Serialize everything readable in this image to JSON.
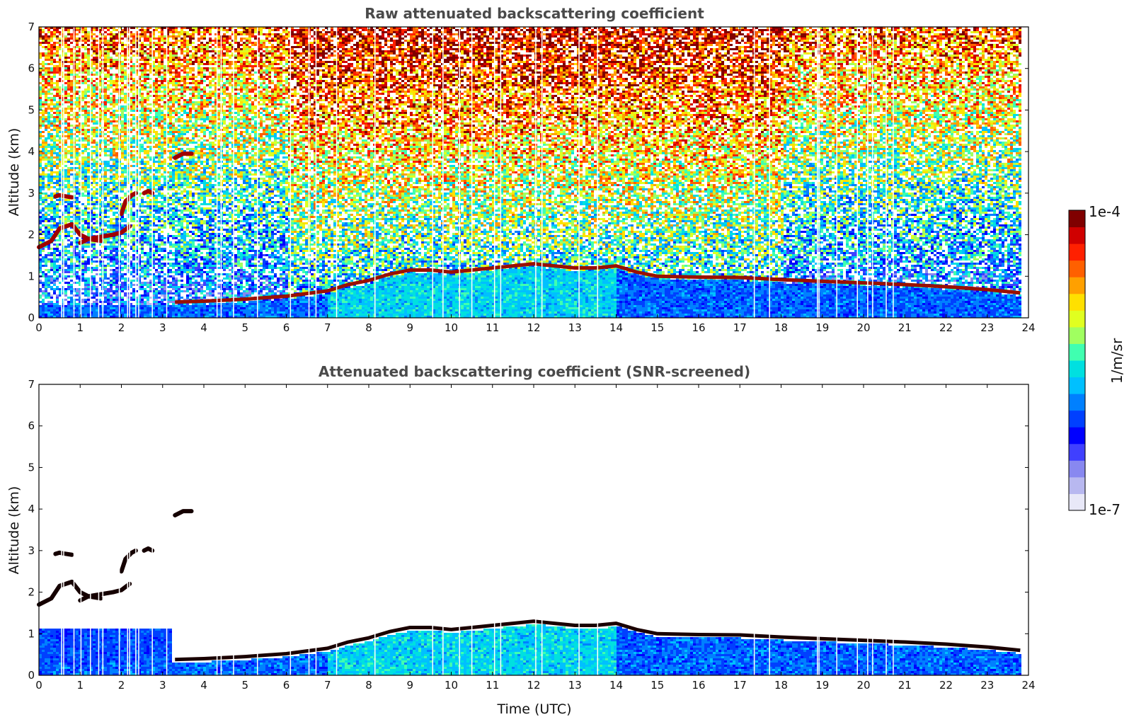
{
  "chart_data": [
    {
      "type": "heatmap",
      "title": "Raw attenuated backscattering coefficient",
      "xlabel": "",
      "ylabel": "Altitude (km)",
      "xlim": [
        0,
        24
      ],
      "ylim": [
        0,
        7
      ],
      "x_ticks": [
        "0",
        "1",
        "2",
        "3",
        "4",
        "5",
        "6",
        "7",
        "8",
        "9",
        "10",
        "11",
        "12",
        "13",
        "14",
        "15",
        "16",
        "17",
        "18",
        "19",
        "20",
        "21",
        "22",
        "23",
        "24"
      ],
      "y_ticks": [
        "0",
        "1",
        "2",
        "3",
        "4",
        "5",
        "6",
        "7"
      ],
      "data_end_hour": 23.8,
      "noise_floor": "full column",
      "boundary_layer_top_km": {
        "x": [
          3.3,
          4,
          5,
          6,
          7,
          7.5,
          8,
          8.5,
          9,
          9.5,
          10,
          10.5,
          11,
          11.5,
          12,
          12.5,
          13,
          13.5,
          14,
          14.5,
          15,
          16,
          17,
          18,
          19,
          20,
          21,
          22,
          23,
          23.8
        ],
        "y": [
          0.38,
          0.4,
          0.45,
          0.52,
          0.65,
          0.8,
          0.9,
          1.05,
          1.15,
          1.15,
          1.1,
          1.15,
          1.2,
          1.25,
          1.3,
          1.25,
          1.2,
          1.2,
          1.25,
          1.1,
          1.0,
          0.98,
          0.97,
          0.92,
          0.88,
          0.84,
          0.8,
          0.75,
          0.68,
          0.6
        ]
      },
      "cloud_layers": [
        {
          "name": "",
          "x": [
            0,
            0.3,
            0.5,
            0.8,
            1.0,
            1.2,
            1.5,
            1.8,
            2.0,
            2.2
          ],
          "y": [
            1.7,
            1.85,
            2.15,
            2.25,
            2.0,
            1.9,
            1.95,
            2.0,
            2.05,
            2.2
          ]
        },
        {
          "name": "",
          "x": [
            0.4,
            0.5,
            0.6,
            0.8
          ],
          "y": [
            2.92,
            2.95,
            2.93,
            2.9
          ]
        },
        {
          "name": "",
          "x": [
            2.0,
            2.1,
            2.25,
            2.35
          ],
          "y": [
            2.5,
            2.8,
            2.95,
            3.0
          ]
        },
        {
          "name": "",
          "x": [
            2.55,
            2.65,
            2.75
          ],
          "y": [
            3.0,
            3.05,
            3.0
          ]
        },
        {
          "name": "",
          "x": [
            3.3,
            3.5,
            3.7
          ],
          "y": [
            3.85,
            3.95,
            3.95
          ]
        },
        {
          "name": "",
          "x": [
            1.0,
            1.2,
            1.5
          ],
          "y": [
            1.8,
            1.9,
            1.85
          ]
        }
      ]
    },
    {
      "type": "heatmap",
      "title": "Attenuated backscattering coefficient (SNR-screened)",
      "xlabel": "Time (UTC)",
      "ylabel": "Altitude (km)",
      "xlim": [
        0,
        24
      ],
      "ylim": [
        0,
        7
      ],
      "x_ticks": [
        "0",
        "1",
        "2",
        "3",
        "4",
        "5",
        "6",
        "7",
        "8",
        "9",
        "10",
        "11",
        "12",
        "13",
        "14",
        "15",
        "16",
        "17",
        "18",
        "19",
        "20",
        "21",
        "22",
        "23",
        "24"
      ],
      "y_ticks": [
        "0",
        "1",
        "2",
        "3",
        "4",
        "5",
        "6",
        "7"
      ],
      "data_end_hour": 23.8,
      "noise_floor": "screened (white)",
      "boundary_layer_top_km": {
        "x": [
          3.3,
          4,
          5,
          6,
          7,
          7.5,
          8,
          8.5,
          9,
          9.5,
          10,
          10.5,
          11,
          11.5,
          12,
          12.5,
          13,
          13.5,
          14,
          14.5,
          15,
          16,
          17,
          18,
          19,
          20,
          21,
          22,
          23,
          23.8
        ],
        "y": [
          0.38,
          0.4,
          0.45,
          0.52,
          0.65,
          0.8,
          0.9,
          1.05,
          1.15,
          1.15,
          1.1,
          1.15,
          1.2,
          1.25,
          1.3,
          1.25,
          1.2,
          1.2,
          1.25,
          1.1,
          1.0,
          0.98,
          0.97,
          0.92,
          0.88,
          0.84,
          0.8,
          0.75,
          0.68,
          0.6
        ]
      },
      "cloud_layers": [
        {
          "name": "",
          "x": [
            0,
            0.3,
            0.5,
            0.8,
            1.0,
            1.2,
            1.5,
            1.8,
            2.0,
            2.2
          ],
          "y": [
            1.7,
            1.85,
            2.15,
            2.25,
            2.0,
            1.9,
            1.95,
            2.0,
            2.05,
            2.2
          ]
        },
        {
          "name": "",
          "x": [
            0.4,
            0.5,
            0.6,
            0.8
          ],
          "y": [
            2.92,
            2.95,
            2.93,
            2.9
          ]
        },
        {
          "name": "",
          "x": [
            2.0,
            2.1,
            2.25,
            2.35
          ],
          "y": [
            2.5,
            2.8,
            2.95,
            3.0
          ]
        },
        {
          "name": "",
          "x": [
            2.55,
            2.65,
            2.75
          ],
          "y": [
            3.0,
            3.05,
            3.0
          ]
        },
        {
          "name": "",
          "x": [
            3.3,
            3.5,
            3.7
          ],
          "y": [
            3.85,
            3.95,
            3.95
          ]
        },
        {
          "name": "",
          "x": [
            1.0,
            1.2,
            1.5
          ],
          "y": [
            1.8,
            1.9,
            1.85
          ]
        }
      ]
    }
  ],
  "colorbar": {
    "max_label": "1e-4",
    "min_label": "1e-7",
    "unit_label": "1/m/sr",
    "scale": "log",
    "range": [
      1e-07,
      0.0001
    ],
    "colors": [
      "#e8e8f8",
      "#b8b8f0",
      "#8888f0",
      "#4040ff",
      "#0000ff",
      "#0040ff",
      "#0080ff",
      "#00c0ff",
      "#00e0e0",
      "#40ffb0",
      "#a0ff60",
      "#e0ff20",
      "#ffe000",
      "#ffa000",
      "#ff6000",
      "#ff2000",
      "#d00000",
      "#800000"
    ]
  },
  "dropout_hours": [
    0.55,
    0.6,
    0.85,
    1.02,
    1.25,
    1.45,
    1.55,
    1.95,
    2.15,
    2.2,
    2.35,
    2.42,
    2.75,
    3.1,
    4.32,
    4.42,
    4.72,
    5.3,
    6.1,
    6.55,
    6.72,
    7.22,
    8.15,
    9.55,
    9.8,
    10.2,
    10.5,
    11.05,
    11.2,
    12.05,
    12.2,
    13.1,
    13.55,
    17.35,
    17.72,
    18.88,
    18.92,
    19.35,
    19.85,
    20.1,
    20.22,
    20.55,
    20.72
  ]
}
